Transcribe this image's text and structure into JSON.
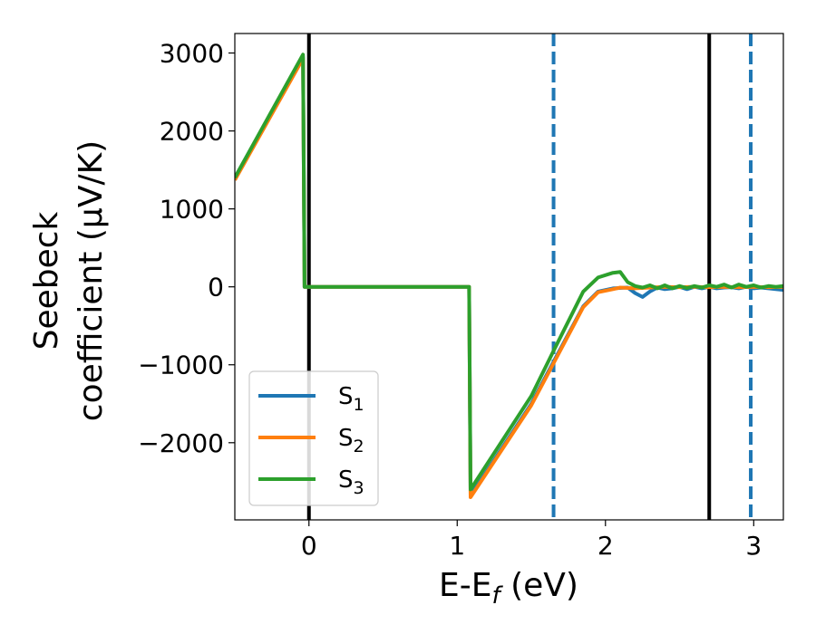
{
  "chart_data": {
    "type": "line",
    "xlabel": "E-E",
    "xlabel_sub": "f",
    "xlabel_unit": " (eV)",
    "ylabel_line1": "Seebeck",
    "ylabel_line2": "coefficient  (μV/K)",
    "xlim": [
      -0.5,
      3.2
    ],
    "ylim": [
      -2990,
      3250
    ],
    "xticks": [
      0,
      1,
      2,
      3
    ],
    "xtick_labels": [
      "0",
      "1",
      "2",
      "3"
    ],
    "yticks": [
      3000,
      2000,
      1000,
      0,
      -1000,
      -2000
    ],
    "ytick_labels": [
      "3000",
      "2000",
      "1000",
      "0",
      "−1000",
      "−2000"
    ],
    "grid": false,
    "legend_position": "lower-left",
    "vlines": [
      {
        "x": 0.0,
        "color": "#000000",
        "style": "solid"
      },
      {
        "x": 2.7,
        "color": "#000000",
        "style": "solid"
      },
      {
        "x": 1.65,
        "color": "#1f77b4",
        "style": "dashed"
      },
      {
        "x": 2.98,
        "color": "#1f77b4",
        "style": "dashed"
      }
    ],
    "series": [
      {
        "name": "S",
        "sub": "1",
        "color": "#1f77b4",
        "points": [
          [
            -0.5,
            1400
          ],
          [
            -0.04,
            2950
          ],
          [
            -0.03,
            0
          ],
          [
            1.08,
            0
          ],
          [
            1.09,
            -2680
          ],
          [
            1.5,
            -1500
          ],
          [
            1.65,
            -960
          ],
          [
            1.85,
            -250
          ],
          [
            1.95,
            -60
          ],
          [
            2.05,
            -20
          ],
          [
            2.15,
            -10
          ],
          [
            2.2,
            -80
          ],
          [
            2.25,
            -130
          ],
          [
            2.3,
            -60
          ],
          [
            2.35,
            -10
          ],
          [
            2.4,
            -30
          ],
          [
            2.45,
            -20
          ],
          [
            2.5,
            0
          ],
          [
            2.55,
            -30
          ],
          [
            2.6,
            0
          ],
          [
            2.65,
            -20
          ],
          [
            2.7,
            0
          ],
          [
            2.75,
            -20
          ],
          [
            2.8,
            -10
          ],
          [
            2.85,
            -5
          ],
          [
            2.9,
            -20
          ],
          [
            2.95,
            0
          ],
          [
            3.0,
            -20
          ],
          [
            3.05,
            -10
          ],
          [
            3.1,
            -20
          ],
          [
            3.15,
            -30
          ],
          [
            3.2,
            -40
          ]
        ]
      },
      {
        "name": "S",
        "sub": "2",
        "color": "#ff7f0e",
        "points": [
          [
            -0.5,
            1370
          ],
          [
            -0.04,
            2930
          ],
          [
            -0.03,
            0
          ],
          [
            1.08,
            0
          ],
          [
            1.09,
            -2700
          ],
          [
            1.5,
            -1520
          ],
          [
            1.65,
            -980
          ],
          [
            1.85,
            -260
          ],
          [
            1.95,
            -70
          ],
          [
            2.05,
            -30
          ],
          [
            2.1,
            -10
          ],
          [
            2.2,
            -20
          ],
          [
            2.3,
            -10
          ],
          [
            2.4,
            0
          ],
          [
            2.5,
            -5
          ],
          [
            2.6,
            0
          ],
          [
            2.7,
            -5
          ],
          [
            2.8,
            0
          ],
          [
            2.9,
            -5
          ],
          [
            3.0,
            0
          ],
          [
            3.1,
            -5
          ],
          [
            3.2,
            0
          ]
        ]
      },
      {
        "name": "S",
        "sub": "3",
        "color": "#2ca02c",
        "points": [
          [
            -0.5,
            1400
          ],
          [
            -0.04,
            2980
          ],
          [
            -0.03,
            0
          ],
          [
            1.08,
            0
          ],
          [
            1.09,
            -2600
          ],
          [
            1.5,
            -1400
          ],
          [
            1.65,
            -820
          ],
          [
            1.85,
            -60
          ],
          [
            1.95,
            120
          ],
          [
            2.05,
            180
          ],
          [
            2.1,
            190
          ],
          [
            2.15,
            60
          ],
          [
            2.2,
            10
          ],
          [
            2.25,
            -10
          ],
          [
            2.3,
            20
          ],
          [
            2.35,
            -20
          ],
          [
            2.4,
            20
          ],
          [
            2.45,
            -20
          ],
          [
            2.5,
            10
          ],
          [
            2.55,
            -15
          ],
          [
            2.6,
            10
          ],
          [
            2.65,
            -10
          ],
          [
            2.7,
            20
          ],
          [
            2.75,
            0
          ],
          [
            2.8,
            30
          ],
          [
            2.85,
            -10
          ],
          [
            2.9,
            30
          ],
          [
            2.95,
            0
          ],
          [
            3.0,
            20
          ],
          [
            3.05,
            -10
          ],
          [
            3.1,
            10
          ],
          [
            3.15,
            0
          ],
          [
            3.2,
            10
          ]
        ]
      }
    ]
  }
}
